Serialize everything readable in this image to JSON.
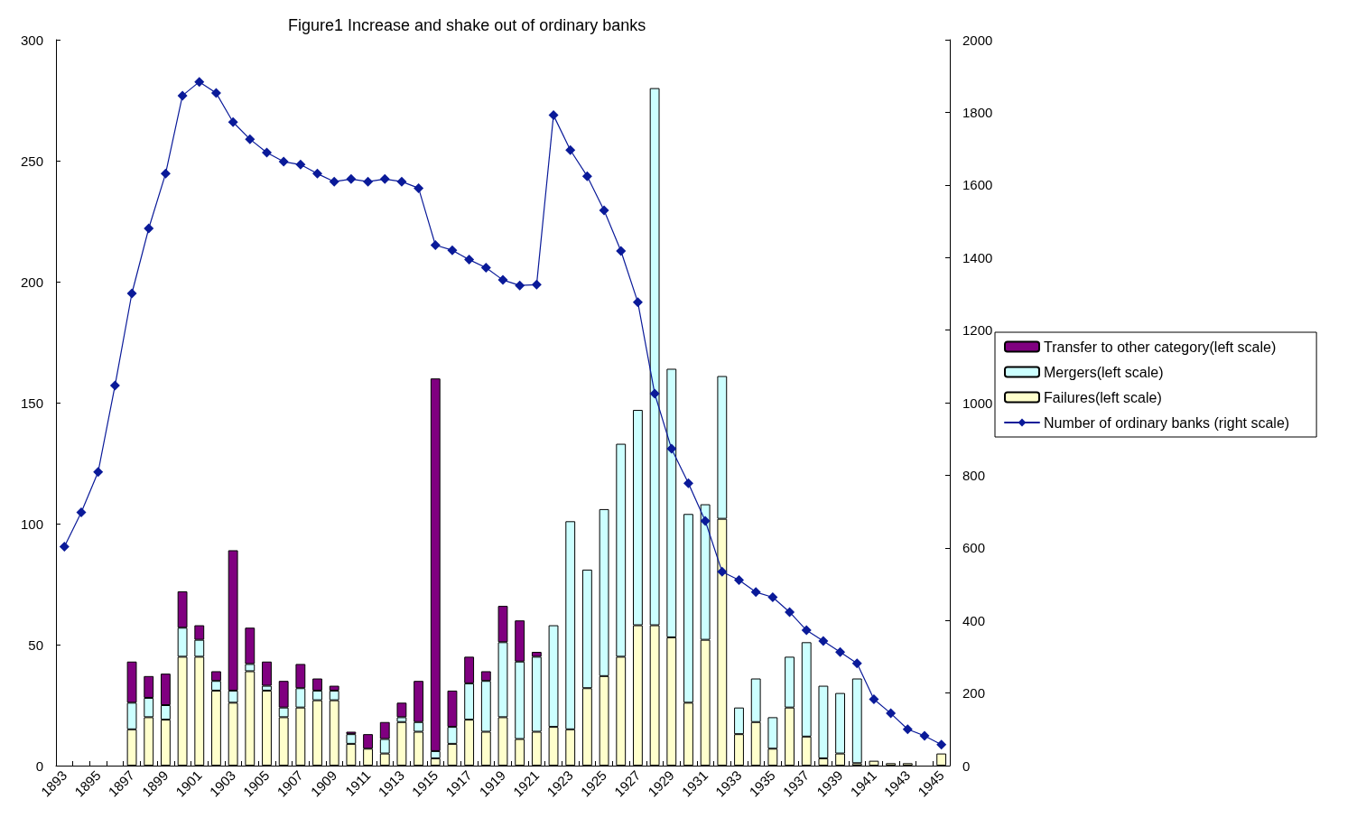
{
  "chart_data": {
    "type": "bar",
    "title": "Figure1 Increase and shake out of ordinary banks",
    "categories": [
      "1893",
      null,
      "1895",
      null,
      "1897",
      null,
      "1899",
      null,
      "1901",
      null,
      "1903",
      null,
      "1905",
      null,
      "1907",
      null,
      "1909",
      null,
      "1911",
      null,
      "1913",
      null,
      "1915",
      null,
      "1917",
      null,
      "1919",
      null,
      "1921",
      null,
      "1923",
      null,
      "1925",
      null,
      "1927",
      null,
      "1929",
      null,
      "1931",
      null,
      "1933",
      null,
      "1935",
      null,
      "1937",
      null,
      "1939",
      null,
      "1941",
      null,
      "1943",
      null,
      "1945"
    ],
    "stacked": true,
    "series": [
      {
        "name": "Failures(left scale)",
        "color": "#ffffcc",
        "values": [
          null,
          null,
          null,
          null,
          15,
          20,
          19,
          45,
          45,
          31,
          26,
          39,
          31,
          20,
          24,
          27,
          27,
          9,
          7,
          5,
          18,
          14,
          3,
          9,
          19,
          14,
          20,
          11,
          14,
          16,
          15,
          32,
          37,
          45,
          58,
          58,
          53,
          26,
          52,
          102,
          13,
          18,
          7,
          24,
          12,
          3,
          5,
          1,
          2,
          1,
          1,
          null,
          5
        ]
      },
      {
        "name": "Mergers(left scale)",
        "color": "#ccffff",
        "values": [
          null,
          null,
          null,
          null,
          11,
          8,
          6,
          12,
          7,
          4,
          5,
          3,
          2,
          4,
          8,
          4,
          4,
          4,
          null,
          6,
          2,
          4,
          3,
          7,
          15,
          21,
          31,
          32,
          31,
          42,
          86,
          49,
          69,
          88,
          89,
          222,
          111,
          78,
          56,
          59,
          11,
          18,
          13,
          21,
          39,
          30,
          25,
          35,
          null,
          null,
          null,
          null,
          null
        ]
      },
      {
        "name": "Transfer to other category(left scale)",
        "color": "#800080",
        "values": [
          null,
          null,
          null,
          null,
          17,
          9,
          13,
          15,
          6,
          4,
          58,
          15,
          10,
          11,
          10,
          5,
          2,
          1,
          6,
          7,
          6,
          17,
          154,
          15,
          11,
          4,
          15,
          17,
          2,
          null,
          null,
          null,
          null,
          null,
          null,
          null,
          null,
          null,
          null,
          null,
          null,
          null,
          null,
          null,
          null,
          null,
          null,
          null,
          null,
          null,
          null,
          null,
          null
        ]
      },
      {
        "name": "Number of ordinary banks (right scale)",
        "type": "line",
        "axis": "y2",
        "color": "#0a1a99",
        "marker": "diamond",
        "values": [
          603,
          698,
          809,
          1047,
          1301,
          1480,
          1631,
          1846,
          1884,
          1853,
          1773,
          1726,
          1689,
          1664,
          1656,
          1631,
          1609,
          1616,
          1609,
          1616,
          1609,
          1591,
          1434,
          1420,
          1394,
          1372,
          1338,
          1323,
          1325,
          1792,
          1696,
          1624,
          1530,
          1418,
          1277,
          1025,
          873,
          778,
          674,
          534,
          511,
          478,
          464,
          423,
          373,
          343,
          313,
          282,
          183,
          144,
          100,
          82,
          58
        ]
      }
    ],
    "ylim": [
      0,
      300
    ],
    "yticks": [
      0,
      50,
      100,
      150,
      200,
      250,
      300
    ],
    "y2lim": [
      0,
      2000
    ],
    "y2ticks": [
      0,
      200,
      400,
      600,
      800,
      1000,
      1200,
      1400,
      1600,
      1800,
      2000
    ],
    "grid": false,
    "legend": "right"
  }
}
